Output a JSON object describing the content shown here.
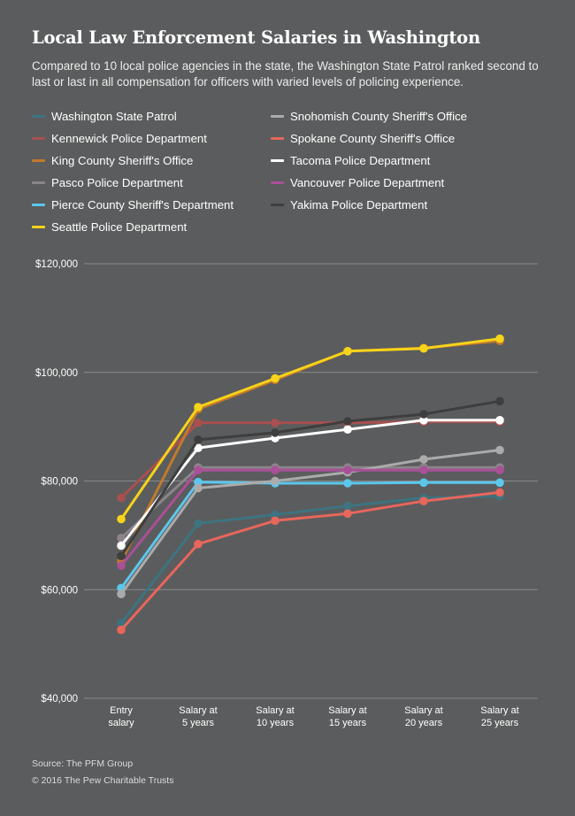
{
  "title": "Local Law Enforcement Salaries in Washington",
  "subtitle": "Compared to 10 local police agencies in the state, the Washington State Patrol ranked second to last or last in all compensation for officers with varied levels of policing experience.",
  "source": "Source: The PFM Group",
  "copyright": "© 2016 The Pew Charitable Trusts",
  "chart_data": {
    "type": "line",
    "categories": [
      [
        "Entry",
        "salary"
      ],
      [
        "Salary at",
        "5 years"
      ],
      [
        "Salary at",
        "10 years"
      ],
      [
        "Salary at",
        "15 years"
      ],
      [
        "Salary at",
        "20 years"
      ],
      [
        "Salary at",
        "25 years"
      ]
    ],
    "ylim": [
      40000,
      120000
    ],
    "yticks": [
      40000,
      60000,
      80000,
      100000,
      120000
    ],
    "ytick_labels": [
      "$40,000",
      "$60,000",
      "$80,000",
      "$100,000",
      "$120,000"
    ],
    "grid": true,
    "legend": "top",
    "series": [
      {
        "name": "Washington State Patrol",
        "color": "#3d7480",
        "values": [
          53800,
          72200,
          73800,
          75400,
          76900,
          77200
        ]
      },
      {
        "name": "Kennewick Police Department",
        "color": "#a94f4f",
        "values": [
          76900,
          90700,
          90700,
          90700,
          90900,
          90900
        ]
      },
      {
        "name": "King County Sheriff's Office",
        "color": "#c27a2a",
        "values": [
          65200,
          93200,
          98600,
          103900,
          104500,
          105800
        ]
      },
      {
        "name": "Pasco Police Department",
        "color": "#8c858b",
        "values": [
          69500,
          82500,
          82500,
          82500,
          82500,
          82500
        ]
      },
      {
        "name": "Pierce County Sheriff's Department",
        "color": "#5bc7ec",
        "values": [
          60300,
          79800,
          79600,
          79600,
          79700,
          79700
        ]
      },
      {
        "name": "Seattle Police Department",
        "color": "#f7d31a",
        "values": [
          73000,
          93600,
          98900,
          103900,
          104400,
          106200
        ]
      },
      {
        "name": "Snohomish County Sheriff's Office",
        "color": "#ababab",
        "values": [
          59200,
          78700,
          80000,
          81600,
          84000,
          85700
        ]
      },
      {
        "name": "Spokane County Sheriff's Office",
        "color": "#e8665c",
        "values": [
          52600,
          68400,
          72700,
          74000,
          76300,
          77900
        ]
      },
      {
        "name": "Tacoma Police Department",
        "color": "#ffffff",
        "values": [
          68100,
          86100,
          87900,
          89500,
          91200,
          91200
        ]
      },
      {
        "name": "Vancouver Police Department",
        "color": "#a95097",
        "values": [
          64400,
          82000,
          82000,
          82000,
          82000,
          82000
        ]
      },
      {
        "name": "Yakima Police Department",
        "color": "#3e3e3e",
        "values": [
          66200,
          87600,
          88900,
          91000,
          92300,
          94700
        ]
      }
    ]
  }
}
